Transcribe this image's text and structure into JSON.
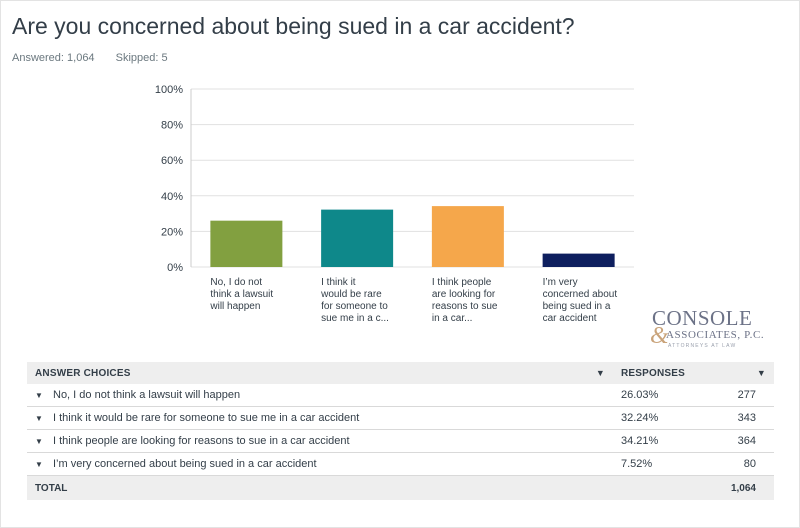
{
  "question": "Are you concerned about being sued in a car accident?",
  "answered_label": "Answered: 1,064",
  "skipped_label": "Skipped: 5",
  "colors": {
    "bar1": "#82a040",
    "bar2": "#0e888a",
    "bar3": "#f5a74b",
    "bar4": "#0e1f5e",
    "grid": "#e1e1e1",
    "axis": "#cccccc"
  },
  "chart_data": {
    "type": "bar",
    "categories": [
      [
        "No, I do not",
        "think a lawsuit",
        "will happen"
      ],
      [
        "I think it",
        "would be rare",
        "for someone to",
        "sue me in a c..."
      ],
      [
        "I think people",
        "are looking for",
        "reasons to sue",
        "in a car..."
      ],
      [
        "I’m very",
        "concerned about",
        "being sued in a",
        "car accident"
      ]
    ],
    "values": [
      26.03,
      32.24,
      34.21,
      7.52
    ],
    "yticks": [
      "100%",
      "80%",
      "60%",
      "40%",
      "20%",
      "0%"
    ],
    "ylim": [
      0,
      100
    ],
    "grid": true
  },
  "logo": {
    "main": "CONSOLE",
    "amp": "&",
    "sub": "ASSOCIATES, P.C.",
    "tag": "ATTORNEYS AT LAW"
  },
  "table": {
    "headers": {
      "choices": "ANSWER CHOICES",
      "responses": "RESPONSES"
    },
    "rows": [
      {
        "choice": "No, I do not think a lawsuit will happen",
        "percent": "26.03%",
        "count": "277"
      },
      {
        "choice": "I think it would be rare for someone to sue me in a car accident",
        "percent": "32.24%",
        "count": "343"
      },
      {
        "choice": "I think people are looking for reasons to sue in a car accident",
        "percent": "34.21%",
        "count": "364"
      },
      {
        "choice": "I’m very concerned about being sued in a car accident",
        "percent": "7.52%",
        "count": "80"
      }
    ],
    "total_label": "TOTAL",
    "total_count": "1,064"
  }
}
